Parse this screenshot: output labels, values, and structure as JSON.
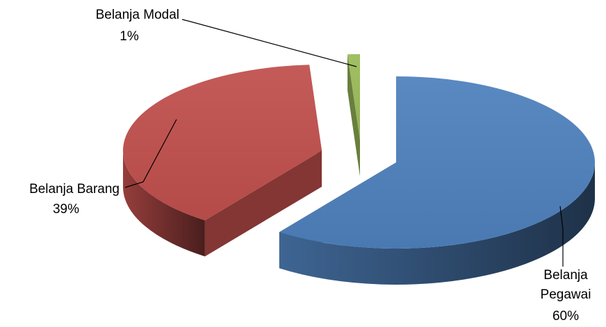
{
  "chart_data": {
    "type": "pie",
    "style": "3d-exploded",
    "title": "",
    "legend": "none",
    "slices": [
      {
        "label": "Belanja Pegawai",
        "label_lines": [
          "Belanja",
          "Pegawai"
        ],
        "value": 60,
        "value_label": "60%",
        "color": "#4F81BD"
      },
      {
        "label": "Belanja Barang",
        "label_lines": [
          "Belanja Barang"
        ],
        "value": 39,
        "value_label": "39%",
        "color": "#C0504D"
      },
      {
        "label": "Belanja Modal",
        "label_lines": [
          "Belanja Modal"
        ],
        "value": 1,
        "value_label": "1%",
        "color": "#9BBB59"
      }
    ]
  }
}
